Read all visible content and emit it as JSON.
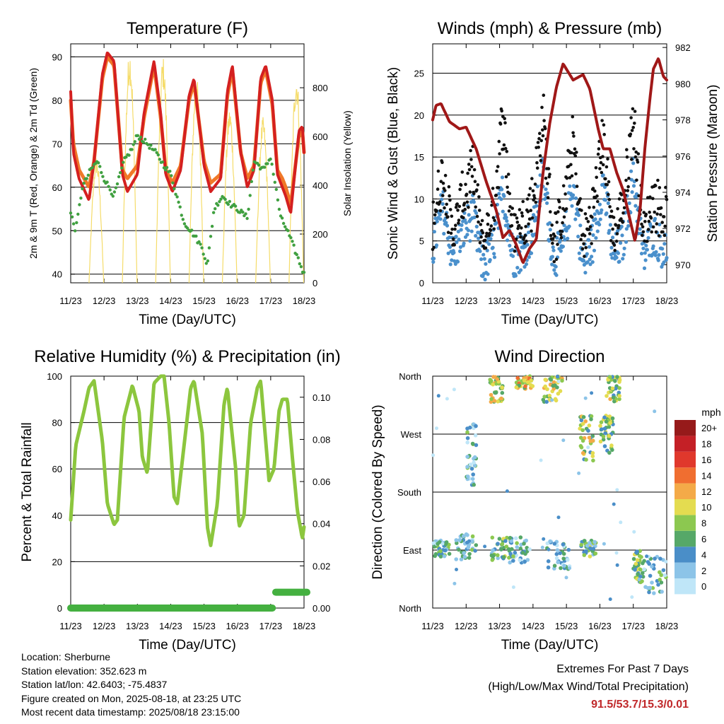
{
  "chart_data": [
    {
      "type": "line",
      "title": "Temperature (F)",
      "xlabel": "Time (Day/UTC)",
      "ylabel": "2m & 9m T (Red, Orange) & 2m Td (Green)",
      "y2label": "Solar Insolation (Yellow)",
      "x_ticks": [
        "11/23",
        "12/23",
        "13/23",
        "14/23",
        "15/23",
        "16/23",
        "17/23",
        "18/23"
      ],
      "ylim": [
        38,
        93
      ],
      "y_ticks": [
        40,
        50,
        60,
        70,
        80,
        90
      ],
      "y2lim": [
        0,
        980
      ],
      "y2_ticks": [
        0,
        200,
        400,
        600,
        800
      ],
      "grid": "horizontal",
      "series": [
        {
          "name": "2m T",
          "color": "#d42020",
          "x": [
            0,
            0.08,
            0.25,
            0.55,
            0.7,
            0.95,
            1.1,
            1.3,
            1.55,
            1.7,
            2.0,
            2.2,
            2.5,
            2.7,
            2.85,
            3.05,
            3.3,
            3.55,
            3.7,
            4.0,
            4.2,
            4.5,
            4.7,
            4.85,
            5.1,
            5.3,
            5.5,
            5.7,
            5.85,
            6.05,
            6.2,
            6.35,
            6.45,
            6.6,
            6.85,
            6.95,
            7.0
          ],
          "y": [
            82,
            68,
            62,
            57,
            66,
            86,
            91,
            89,
            63,
            59,
            63,
            77,
            89,
            77,
            63,
            59,
            64,
            81,
            85,
            65,
            59,
            62,
            82,
            88,
            68,
            60,
            64,
            85,
            88,
            80,
            63,
            60,
            58,
            54,
            73,
            74,
            68
          ]
        },
        {
          "name": "9m T",
          "color": "#f07828",
          "x": [
            0,
            0.08,
            0.25,
            0.55,
            0.7,
            0.95,
            1.1,
            1.3,
            1.55,
            1.7,
            2.0,
            2.2,
            2.5,
            2.7,
            2.85,
            3.05,
            3.3,
            3.55,
            3.7,
            4.0,
            4.2,
            4.5,
            4.7,
            4.85,
            5.1,
            5.3,
            5.5,
            5.7,
            5.85,
            6.05,
            6.2,
            6.35,
            6.45,
            6.6,
            6.85,
            6.95,
            7.0
          ],
          "y": [
            80,
            70,
            64,
            60,
            66,
            85,
            90,
            88,
            64,
            62,
            65,
            76,
            88,
            76,
            64,
            61,
            65,
            80,
            84,
            66,
            61,
            63,
            81,
            87,
            68,
            62,
            65,
            84,
            87,
            79,
            64,
            62,
            60,
            56,
            72,
            73,
            68
          ]
        },
        {
          "name": "2m Td",
          "color": "#40a040",
          "x": [
            0,
            0.15,
            0.35,
            0.6,
            0.8,
            1.0,
            1.3,
            1.6,
            1.85,
            2.0,
            2.3,
            2.55,
            2.8,
            3.0,
            3.4,
            3.7,
            3.95,
            4.1,
            4.3,
            4.55,
            4.8,
            5.0,
            5.3,
            5.5,
            5.8,
            6.0,
            6.15,
            6.3,
            6.5,
            6.7,
            6.85,
            7.0
          ],
          "y": [
            54,
            50,
            60,
            64,
            66,
            62,
            58,
            66,
            69,
            72,
            70,
            68,
            65,
            63,
            52,
            49,
            46,
            42,
            55,
            58,
            56,
            55,
            53,
            66,
            64,
            67,
            60,
            53,
            50,
            46,
            43,
            40
          ]
        },
        {
          "name": "Solar Insolation",
          "color": "#f5dc6a",
          "axis": "right",
          "day_peaks": [
            620,
            520,
            960,
            930,
            850,
            720,
            680,
            860
          ]
        }
      ]
    },
    {
      "type": "scatter",
      "title": "Winds (mph) & Pressure (mb)",
      "xlabel": "Time (Day/UTC)",
      "ylabel": "Sonic Wind & Gust (Blue, Black)",
      "y2label": "Station Pressure (Maroon)",
      "x_ticks": [
        "11/23",
        "12/23",
        "13/23",
        "14/23",
        "15/23",
        "16/23",
        "17/23",
        "18/23"
      ],
      "ylim": [
        0,
        28.5
      ],
      "y_ticks": [
        0,
        5,
        10,
        15,
        20,
        25
      ],
      "y2lim": [
        969,
        982.2
      ],
      "y2_ticks": [
        970,
        972,
        974,
        976,
        978,
        980,
        982
      ],
      "grid": "horizontal",
      "series": [
        {
          "name": "Sonic Wind",
          "color": "#4a90cc",
          "x": [
            0,
            0.3,
            0.6,
            0.9,
            1.2,
            1.5,
            1.8,
            2.1,
            2.4,
            2.7,
            3.0,
            3.3,
            3.6,
            3.9,
            4.2,
            4.5,
            4.8,
            5.1,
            5.4,
            5.7,
            6.0,
            6.3,
            6.6,
            6.9
          ],
          "y": [
            4,
            9,
            3,
            6,
            8,
            2,
            4,
            11,
            3,
            4,
            6,
            13,
            3,
            4,
            12,
            2,
            5,
            12,
            3,
            5,
            13,
            3,
            6,
            4
          ]
        },
        {
          "name": "Gust",
          "color": "#111111",
          "x": [
            0,
            0.3,
            0.6,
            0.9,
            1.2,
            1.5,
            1.8,
            2.1,
            2.4,
            2.7,
            3.0,
            3.3,
            3.6,
            3.9,
            4.2,
            4.5,
            4.8,
            5.1,
            5.4,
            5.7,
            6.0,
            6.3,
            6.6,
            6.9
          ],
          "y": [
            7,
            13,
            5,
            10,
            13,
            4,
            8,
            20,
            5,
            7,
            10,
            20,
            5,
            8,
            17,
            4,
            9,
            17,
            5,
            9,
            20,
            5,
            10,
            8
          ]
        },
        {
          "name": "Station Pressure",
          "color": "#a01818",
          "axis": "right",
          "x": [
            0,
            0.1,
            0.25,
            0.4,
            0.5,
            0.8,
            1.0,
            1.3,
            1.6,
            1.9,
            2.1,
            2.3,
            2.5,
            2.7,
            2.9,
            3.1,
            3.3,
            3.5,
            3.7,
            3.9,
            4.2,
            4.5,
            4.7,
            4.95,
            5.1,
            5.3,
            5.5,
            5.7,
            5.9,
            6.05,
            6.2,
            6.35,
            6.5,
            6.6,
            6.75,
            6.9,
            7.0
          ],
          "y": [
            978,
            978.8,
            978.9,
            978.3,
            977.9,
            977.5,
            977.6,
            976.4,
            974.6,
            973,
            971.5,
            971.9,
            971.1,
            970.1,
            970.9,
            971.4,
            975.1,
            977.8,
            979.8,
            981.1,
            980.2,
            980.5,
            979.7,
            977.5,
            976.4,
            976.4,
            975.1,
            974.1,
            972.5,
            971.3,
            973,
            976.5,
            979.2,
            980.8,
            981.4,
            980.4,
            980.2
          ]
        }
      ]
    },
    {
      "type": "line",
      "title": "Relative Humidity (%) & Precipitation (in)",
      "xlabel": "Time (Day/UTC)",
      "ylabel": "Percent & Total Rainfall",
      "x_ticks": [
        "11/23",
        "12/23",
        "13/23",
        "14/23",
        "15/23",
        "16/23",
        "17/23",
        "18/23"
      ],
      "ylim": [
        0,
        100
      ],
      "y_ticks": [
        0,
        20,
        40,
        60,
        80,
        100
      ],
      "y2lim": [
        0,
        0.11
      ],
      "y2_ticks": [
        "0.00",
        "0.02",
        "0.04",
        "0.06",
        "0.08",
        "0.10"
      ],
      "grid": "horizontal",
      "series": [
        {
          "name": "Relative Humidity",
          "color": "#8cc63e",
          "x": [
            0,
            0.15,
            0.4,
            0.55,
            0.7,
            0.95,
            1.1,
            1.3,
            1.4,
            1.6,
            1.85,
            2.05,
            2.15,
            2.3,
            2.5,
            2.7,
            2.8,
            2.95,
            3.1,
            3.2,
            3.4,
            3.6,
            3.7,
            3.95,
            4.1,
            4.2,
            4.4,
            4.6,
            4.7,
            4.95,
            5.05,
            5.2,
            5.4,
            5.6,
            5.7,
            5.95,
            6.1,
            6.25,
            6.35,
            6.5,
            6.65,
            6.8,
            6.95,
            7.0
          ],
          "y": [
            38,
            70,
            85,
            95,
            98,
            72,
            45,
            36,
            38,
            82,
            96,
            85,
            65,
            58,
            97,
            100,
            100,
            80,
            48,
            45,
            70,
            95,
            98,
            75,
            35,
            27,
            45,
            88,
            95,
            60,
            35,
            40,
            80,
            95,
            98,
            55,
            60,
            85,
            90,
            90,
            65,
            42,
            30,
            35
          ]
        },
        {
          "name": "Total Rainfall",
          "color": "#44b040",
          "axis": "right",
          "x": [
            0,
            6.05,
            6.15,
            7.0
          ],
          "y": [
            0,
            0,
            0.0075,
            0.0075
          ]
        }
      ]
    },
    {
      "type": "scatter",
      "title": "Wind Direction",
      "xlabel": "Time (Day/UTC)",
      "ylabel": "Direction (Colored By Speed)",
      "x_ticks": [
        "11/23",
        "12/23",
        "13/23",
        "14/23",
        "15/23",
        "16/23",
        "17/23",
        "18/23"
      ],
      "y_ticks": [
        "North",
        "East",
        "South",
        "West",
        "North"
      ],
      "y_values_deg": [
        0,
        90,
        180,
        270,
        360
      ],
      "colorbar": {
        "title": "mph",
        "labels": [
          "0",
          "2",
          "4",
          "6",
          "8",
          "10",
          "12",
          "14",
          "16",
          "18",
          "20+"
        ],
        "colors": [
          "#bfe6f8",
          "#8cc4e8",
          "#4a8ec8",
          "#56a868",
          "#8cc850",
          "#e4dc50",
          "#f4aa48",
          "#f06e30",
          "#e0382c",
          "#c42026",
          "#961a1a"
        ]
      },
      "clusters": [
        {
          "x": [
            0,
            0.5
          ],
          "deg": [
            80,
            105
          ],
          "speed": 4
        },
        {
          "x": [
            0.7,
            1.3
          ],
          "deg": [
            75,
            115
          ],
          "speed": 4
        },
        {
          "x": [
            1.0,
            1.3
          ],
          "deg": [
            190,
            290
          ],
          "speed": 4
        },
        {
          "x": [
            1.7,
            2.1
          ],
          "deg": [
            320,
            360
          ],
          "speed": 9
        },
        {
          "x": [
            1.75,
            2.4
          ],
          "deg": [
            70,
            110
          ],
          "speed": 6
        },
        {
          "x": [
            2.5,
            3.0
          ],
          "deg": [
            340,
            360
          ],
          "speed": 10
        },
        {
          "x": [
            2.3,
            2.9
          ],
          "deg": [
            70,
            110
          ],
          "speed": 4
        },
        {
          "x": [
            3.3,
            3.9
          ],
          "deg": [
            320,
            360
          ],
          "speed": 8
        },
        {
          "x": [
            3.4,
            4.1
          ],
          "deg": [
            60,
            105
          ],
          "speed": 3
        },
        {
          "x": [
            4.4,
            4.8
          ],
          "deg": [
            220,
            300
          ],
          "speed": 8
        },
        {
          "x": [
            4.4,
            4.9
          ],
          "deg": [
            80,
            105
          ],
          "speed": 6
        },
        {
          "x": [
            5.0,
            5.4
          ],
          "deg": [
            240,
            300
          ],
          "speed": 7
        },
        {
          "x": [
            5.2,
            5.6
          ],
          "deg": [
            320,
            360
          ],
          "speed": 8
        },
        {
          "x": [
            6.0,
            6.3
          ],
          "deg": [
            40,
            90
          ],
          "speed": 7
        },
        {
          "x": [
            6.2,
            7.0
          ],
          "deg": [
            20,
            80
          ],
          "speed": 4
        }
      ]
    }
  ],
  "info": {
    "location": "Location: Sherburne",
    "elevation": "Station elevation: 352.623 m",
    "latlon": "Station lat/lon: 42.6403; -75.4837",
    "created": "Figure created on Mon, 2025-08-18, at 23:25 UTC",
    "recent": "Most recent data timestamp: 2025/08/18 23:15:00"
  },
  "extremes": {
    "title": "Extremes For Past 7 Days",
    "subtitle": "(High/Low/Max Wind/Total Precipitation)",
    "values": "91.5/53.7/15.3/0.01"
  },
  "colors": {
    "temp_2m": "#d42020",
    "temp_9m": "#f07828",
    "dewpoint": "#40a040",
    "solar": "#f5dc6a",
    "wind": "#4a90cc",
    "gust": "#111111",
    "pressure": "#a01818",
    "humidity": "#8cc63e",
    "rain": "#44b040",
    "extremes_text": "#c0282a"
  }
}
